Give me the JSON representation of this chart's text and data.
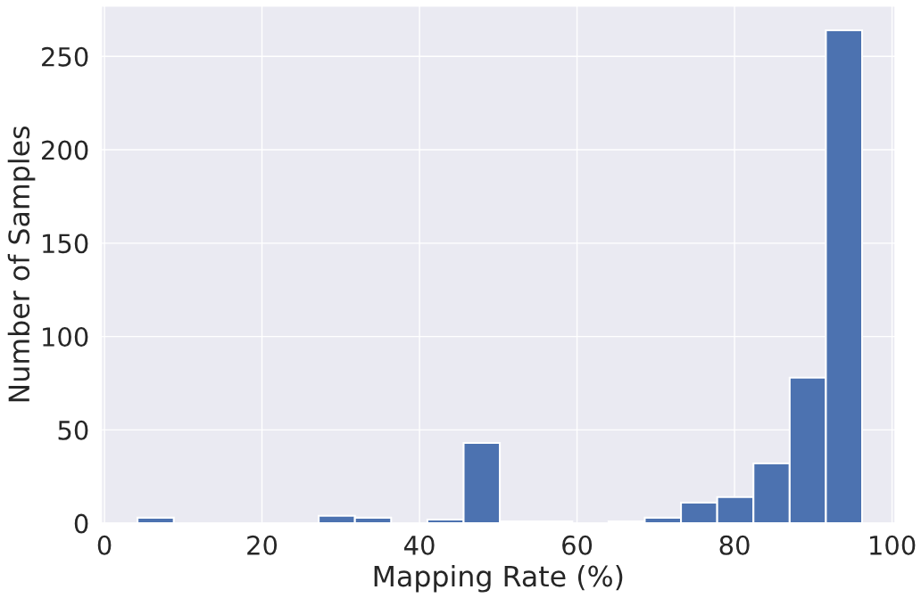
{
  "chart_data": {
    "type": "histogram",
    "xlabel": "Mapping Rate (%)",
    "ylabel": "Number of Samples",
    "bins": [
      4.2,
      8.8,
      13.4,
      18.0,
      22.6,
      27.2,
      31.8,
      36.4,
      41.0,
      45.6,
      50.2,
      54.8,
      59.4,
      64.0,
      68.6,
      73.2,
      77.8,
      82.4,
      87.0,
      91.6,
      96.2
    ],
    "values": [
      3,
      0,
      0,
      0,
      0,
      4,
      3,
      0,
      2,
      43,
      1,
      1,
      0,
      1,
      3,
      11,
      14,
      32,
      78,
      264
    ],
    "color": "#4c72b0",
    "xlim": [
      -0.4,
      100.4
    ],
    "ylim": [
      0,
      277
    ],
    "xticks": [
      0,
      20,
      40,
      60,
      80,
      100
    ],
    "yticks": [
      0,
      50,
      100,
      150,
      200,
      250
    ],
    "grid": true
  }
}
